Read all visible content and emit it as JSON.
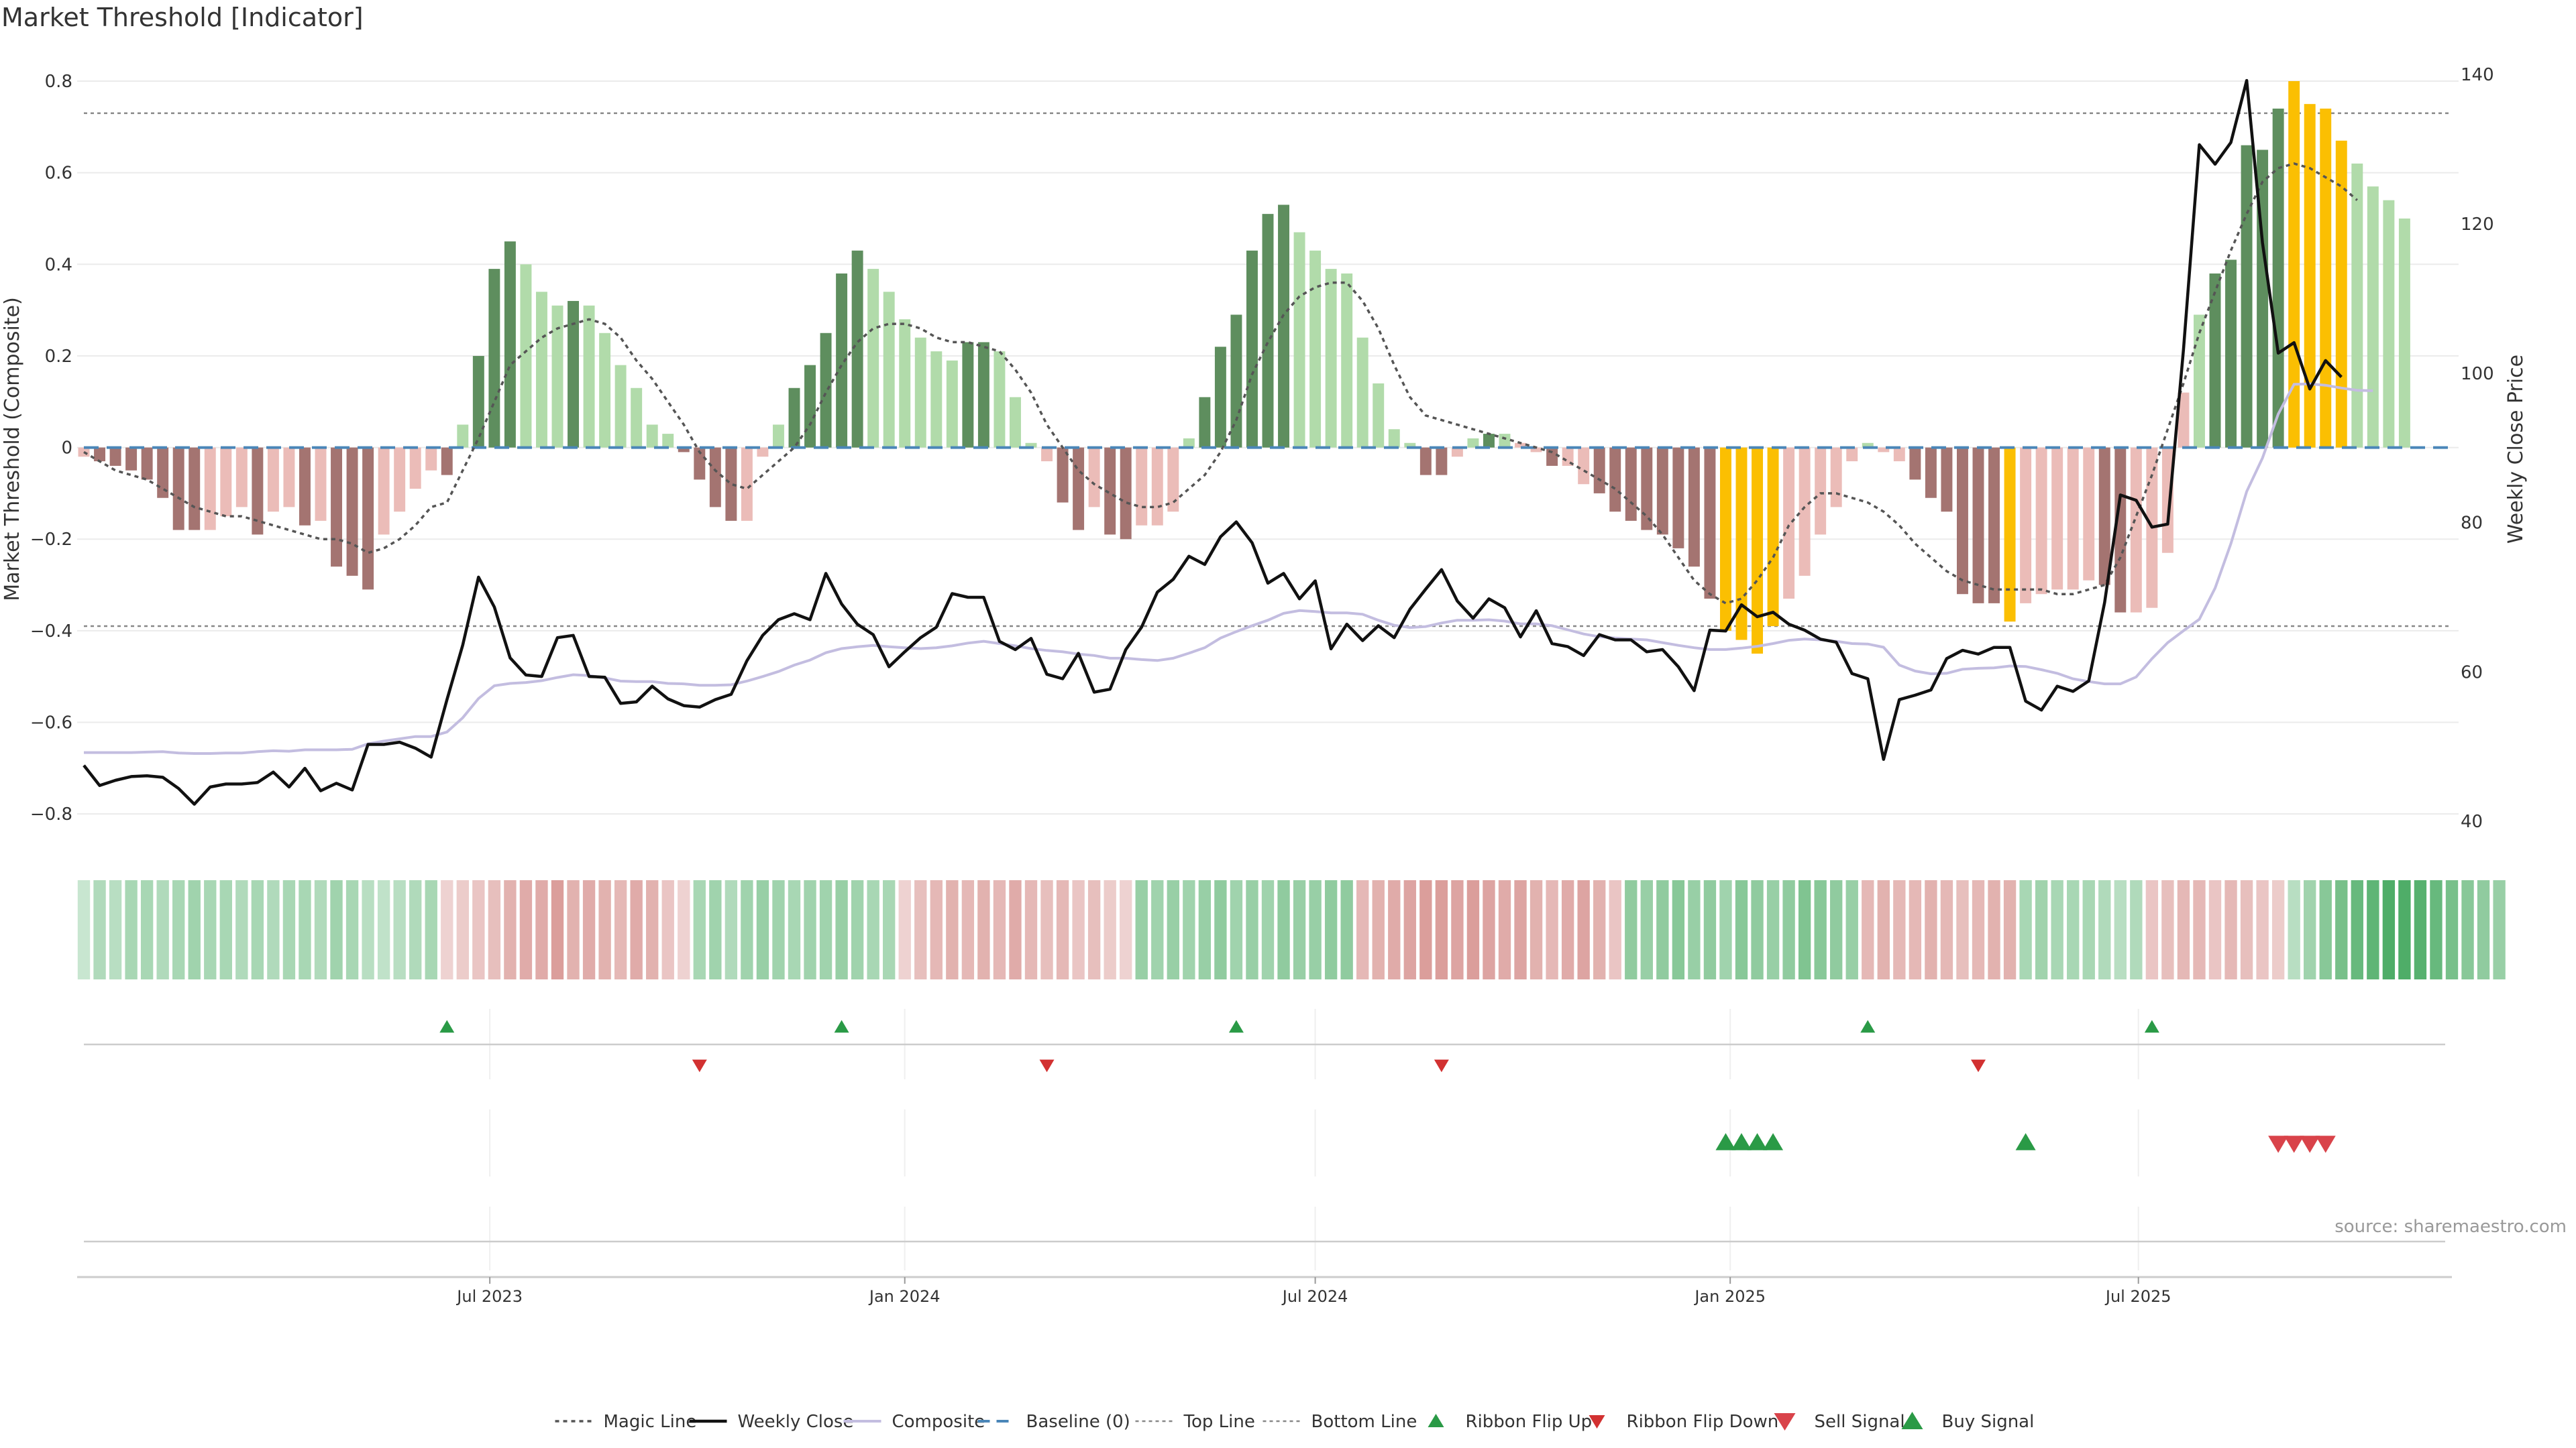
{
  "title": "Market Threshold [Indicator]",
  "source": "source: sharemaestro.com",
  "colors": {
    "bar_up_strong": "#5e8e5e",
    "bar_up_weak": "#b1dbaa",
    "bar_down_strong": "#a47471",
    "bar_down_weak": "#ebbcb8",
    "bar_extreme": "#fbbf02",
    "weekly_close": "#111111",
    "composite": "#c3bde0",
    "magic_line": "#555555",
    "baseline": "#4a86b8",
    "ribbon_flip_up": "#2a9a46",
    "ribbon_flip_down": "#d23131",
    "sell_signal": "#d9434a",
    "buy_signal": "#2a9a46"
  },
  "chart_data": {
    "type": "bar",
    "x_axis": {
      "type": "date",
      "range": [
        "2023-01-02",
        "2025-11-17"
      ],
      "ticks": [
        {
          "date": "2023-07-01",
          "label": "Jul 2023"
        },
        {
          "date": "2024-01-01",
          "label": "Jan 2024"
        },
        {
          "date": "2024-07-01",
          "label": "Jul 2024"
        },
        {
          "date": "2025-01-01",
          "label": "Jan 2025"
        },
        {
          "date": "2025-07-01",
          "label": "Jul 2025"
        }
      ]
    },
    "y_left": {
      "label": "Market Threshold (Composite)",
      "range": [
        -0.87,
        0.86
      ],
      "ticks": [
        -0.8,
        -0.6,
        -0.4,
        -0.2,
        0,
        0.2,
        0.4,
        0.6,
        0.8
      ],
      "tick_labels": [
        "−0.8",
        "−0.6",
        "−0.4",
        "−0.2",
        "0",
        "0.2",
        "0.4",
        "0.6",
        "0.8"
      ]
    },
    "y_right": {
      "label": "Weekly Close Price",
      "range": [
        36.7,
        142.8
      ],
      "ticks": [
        40,
        60,
        80,
        100,
        120,
        140
      ],
      "tick_labels": [
        "40",
        "60",
        "80",
        "100",
        "120",
        "140"
      ]
    },
    "top_line": 0.73,
    "bottom_line": -0.39,
    "histogram": [
      -0.02,
      -0.03,
      -0.04,
      -0.05,
      -0.07,
      -0.11,
      -0.18,
      -0.18,
      -0.18,
      -0.15,
      -0.13,
      -0.19,
      -0.14,
      -0.13,
      -0.17,
      -0.16,
      -0.26,
      -0.28,
      -0.31,
      -0.19,
      -0.14,
      -0.09,
      -0.05,
      -0.06,
      0.05,
      0.2,
      0.39,
      0.45,
      0.4,
      0.34,
      0.31,
      0.32,
      0.31,
      0.25,
      0.18,
      0.13,
      0.05,
      0.03,
      -0.01,
      -0.07,
      -0.13,
      -0.16,
      -0.16,
      -0.02,
      0.05,
      0.13,
      0.18,
      0.25,
      0.38,
      0.43,
      0.39,
      0.34,
      0.28,
      0.24,
      0.21,
      0.19,
      0.23,
      0.23,
      0.21,
      0.11,
      0.01,
      -0.03,
      -0.12,
      -0.18,
      -0.13,
      -0.19,
      -0.2,
      -0.17,
      -0.17,
      -0.14,
      0.02,
      0.11,
      0.22,
      0.29,
      0.43,
      0.51,
      0.53,
      0.47,
      0.43,
      0.39,
      0.38,
      0.24,
      0.14,
      0.04,
      0.01,
      -0.06,
      -0.06,
      -0.02,
      0.02,
      0.03,
      0.03,
      0.01,
      -0.01,
      -0.04,
      -0.04,
      -0.08,
      -0.1,
      -0.14,
      -0.16,
      -0.18,
      -0.19,
      -0.22,
      -0.26,
      -0.33,
      -0.4,
      -0.42,
      -0.45,
      -0.39,
      -0.33,
      -0.28,
      -0.19,
      -0.13,
      -0.03,
      0.01,
      -0.01,
      -0.03,
      -0.07,
      -0.11,
      -0.14,
      -0.32,
      -0.34,
      -0.34,
      -0.38,
      -0.34,
      -0.32,
      -0.31,
      -0.31,
      -0.29,
      -0.3,
      -0.36,
      -0.36,
      -0.35,
      -0.23,
      0.12,
      0.29,
      0.38,
      0.41,
      0.66,
      0.65,
      0.74,
      0.8,
      0.75,
      0.74,
      0.67,
      0.62,
      0.57,
      0.54,
      0.5
    ],
    "histogram_colors": [
      "dw",
      "ds",
      "ds",
      "ds",
      "ds",
      "ds",
      "ds",
      "ds",
      "dw",
      "dw",
      "dw",
      "ds",
      "dw",
      "dw",
      "ds",
      "dw",
      "ds",
      "ds",
      "ds",
      "dw",
      "dw",
      "dw",
      "dw",
      "ds",
      "uw",
      "us",
      "us",
      "us",
      "uw",
      "uw",
      "uw",
      "us",
      "uw",
      "uw",
      "uw",
      "uw",
      "uw",
      "uw",
      "ds",
      "ds",
      "ds",
      "ds",
      "dw",
      "dw",
      "uw",
      "us",
      "us",
      "us",
      "us",
      "us",
      "uw",
      "uw",
      "uw",
      "uw",
      "uw",
      "uw",
      "us",
      "us",
      "uw",
      "uw",
      "uw",
      "dw",
      "ds",
      "ds",
      "dw",
      "ds",
      "ds",
      "dw",
      "dw",
      "dw",
      "uw",
      "us",
      "us",
      "us",
      "us",
      "us",
      "us",
      "uw",
      "uw",
      "uw",
      "uw",
      "uw",
      "uw",
      "uw",
      "uw",
      "ds",
      "ds",
      "dw",
      "uw",
      "us",
      "uw",
      "dw",
      "dw",
      "ds",
      "dw",
      "dw",
      "ds",
      "ds",
      "ds",
      "ds",
      "ds",
      "ds",
      "ds",
      "ds",
      "ex",
      "ex",
      "ex",
      "ex",
      "dw",
      "dw",
      "dw",
      "dw",
      "dw",
      "uw",
      "dw",
      "dw",
      "ds",
      "ds",
      "ds",
      "ds",
      "ds",
      "ds",
      "ex",
      "dw",
      "dw",
      "dw",
      "dw",
      "dw",
      "ds",
      "ds",
      "dw",
      "dw",
      "dw",
      "dw",
      "uw",
      "us",
      "us",
      "us",
      "us",
      "us",
      "ex",
      "ex",
      "ex",
      "ex",
      "uw",
      "uw",
      "uw",
      "uw",
      "uw"
    ],
    "weekly_close": [
      47.5,
      44.8,
      45.5,
      46.0,
      46.1,
      45.9,
      44.4,
      42.3,
      44.6,
      45.0,
      45.0,
      45.2,
      46.6,
      44.6,
      47.1,
      44.1,
      45.1,
      44.2,
      50.3,
      50.3,
      50.6,
      49.8,
      48.6,
      56.3,
      63.6,
      72.7,
      68.7,
      61.9,
      59.6,
      59.4,
      64.6,
      64.9,
      59.4,
      59.3,
      55.8,
      56.0,
      58.1,
      56.4,
      55.5,
      55.3,
      56.3,
      57.0,
      61.5,
      64.9,
      67.0,
      67.8,
      67.0,
      73.2,
      69.1,
      66.4,
      65.0,
      60.7,
      62.7,
      64.6,
      66.0,
      70.5,
      70.0,
      70.0,
      64.1,
      63.0,
      64.5,
      59.7,
      59.1,
      62.5,
      57.3,
      57.7,
      63.0,
      66.0,
      70.7,
      72.4,
      75.5,
      74.4,
      78.1,
      80.1,
      77.3,
      71.9,
      73.2,
      69.8,
      72.2,
      63.1,
      66.4,
      64.2,
      66.2,
      64.6,
      68.4,
      71.1,
      73.7,
      69.5,
      67.2,
      69.8,
      68.6,
      64.7,
      68.2,
      63.8,
      63.4,
      62.2,
      65.0,
      64.3,
      64.3,
      62.7,
      63.0,
      60.7,
      57.5,
      65.6,
      65.5,
      69.0,
      67.4,
      68.0,
      66.4,
      65.6,
      64.4,
      64.0,
      59.8,
      59.1,
      48.3,
      56.3,
      56.9,
      57.6,
      61.8,
      62.9,
      62.4,
      63.3,
      63.3,
      56.1,
      54.9,
      58.1,
      57.4,
      58.8,
      69.3,
      83.7,
      83.0,
      79.4,
      79.8,
      103.2,
      130.6,
      128.0,
      130.9,
      139.2,
      117.5,
      102.7,
      104.1,
      97.9,
      101.7,
      99.5
    ],
    "composite": [
      -0.666,
      -0.666,
      -0.666,
      -0.666,
      -0.665,
      -0.664,
      -0.667,
      -0.668,
      -0.668,
      -0.667,
      -0.667,
      -0.664,
      -0.662,
      -0.663,
      -0.66,
      -0.66,
      -0.66,
      -0.659,
      -0.647,
      -0.641,
      -0.636,
      -0.631,
      -0.631,
      -0.621,
      -0.59,
      -0.548,
      -0.52,
      -0.515,
      -0.513,
      -0.509,
      -0.502,
      -0.496,
      -0.498,
      -0.503,
      -0.51,
      -0.511,
      -0.511,
      -0.515,
      -0.516,
      -0.519,
      -0.519,
      -0.518,
      -0.51,
      -0.5,
      -0.489,
      -0.475,
      -0.464,
      -0.448,
      -0.439,
      -0.435,
      -0.432,
      -0.435,
      -0.437,
      -0.439,
      -0.437,
      -0.433,
      -0.427,
      -0.423,
      -0.428,
      -0.433,
      -0.439,
      -0.443,
      -0.446,
      -0.451,
      -0.454,
      -0.46,
      -0.46,
      -0.463,
      -0.465,
      -0.46,
      -0.449,
      -0.437,
      -0.416,
      -0.402,
      -0.389,
      -0.377,
      -0.362,
      -0.356,
      -0.358,
      -0.361,
      -0.361,
      -0.364,
      -0.377,
      -0.388,
      -0.393,
      -0.391,
      -0.383,
      -0.377,
      -0.377,
      -0.376,
      -0.379,
      -0.385,
      -0.385,
      -0.389,
      -0.398,
      -0.407,
      -0.413,
      -0.416,
      -0.418,
      -0.42,
      -0.426,
      -0.432,
      -0.437,
      -0.441,
      -0.441,
      -0.438,
      -0.434,
      -0.428,
      -0.421,
      -0.418,
      -0.42,
      -0.423,
      -0.428,
      -0.429,
      -0.436,
      -0.475,
      -0.488,
      -0.494,
      -0.493,
      -0.484,
      -0.482,
      -0.481,
      -0.477,
      -0.478,
      -0.485,
      -0.493,
      -0.505,
      -0.511,
      -0.516,
      -0.516,
      -0.501,
      -0.461,
      -0.426,
      -0.4,
      -0.375,
      -0.307,
      -0.21,
      -0.096,
      -0.023,
      0.073,
      0.138,
      0.139,
      0.136,
      0.13,
      0.125,
      0.124
    ],
    "magic_line": [
      -0.01,
      -0.03,
      -0.05,
      -0.06,
      -0.07,
      -0.09,
      -0.11,
      -0.13,
      -0.14,
      -0.15,
      -0.15,
      -0.16,
      -0.17,
      -0.18,
      -0.19,
      -0.2,
      -0.2,
      -0.21,
      -0.23,
      -0.22,
      -0.2,
      -0.17,
      -0.13,
      -0.12,
      -0.05,
      0.02,
      0.1,
      0.18,
      0.21,
      0.24,
      0.26,
      0.27,
      0.28,
      0.27,
      0.24,
      0.19,
      0.15,
      0.1,
      0.05,
      -0.01,
      -0.05,
      -0.08,
      -0.09,
      -0.06,
      -0.03,
      0.0,
      0.05,
      0.12,
      0.18,
      0.23,
      0.26,
      0.27,
      0.27,
      0.26,
      0.24,
      0.23,
      0.23,
      0.22,
      0.21,
      0.17,
      0.12,
      0.05,
      0.0,
      -0.05,
      -0.08,
      -0.1,
      -0.12,
      -0.13,
      -0.13,
      -0.12,
      -0.09,
      -0.06,
      -0.01,
      0.06,
      0.16,
      0.23,
      0.29,
      0.33,
      0.35,
      0.36,
      0.36,
      0.32,
      0.26,
      0.18,
      0.11,
      0.07,
      0.06,
      0.05,
      0.04,
      0.03,
      0.02,
      0.01,
      0.0,
      -0.01,
      -0.03,
      -0.05,
      -0.07,
      -0.09,
      -0.12,
      -0.15,
      -0.19,
      -0.24,
      -0.29,
      -0.32,
      -0.34,
      -0.33,
      -0.29,
      -0.24,
      -0.17,
      -0.13,
      -0.1,
      -0.1,
      -0.11,
      -0.12,
      -0.14,
      -0.17,
      -0.21,
      -0.24,
      -0.27,
      -0.29,
      -0.3,
      -0.31,
      -0.31,
      -0.31,
      -0.31,
      -0.32,
      -0.32,
      -0.31,
      -0.3,
      -0.24,
      -0.15,
      -0.06,
      0.04,
      0.14,
      0.25,
      0.34,
      0.43,
      0.51,
      0.58,
      0.61,
      0.62,
      0.61,
      0.59,
      0.57,
      0.54
    ],
    "ribbon": [
      0.1,
      0.25,
      0.2,
      0.3,
      0.3,
      0.25,
      0.3,
      0.35,
      0.3,
      0.3,
      0.25,
      0.3,
      0.25,
      0.3,
      0.3,
      0.25,
      0.35,
      0.3,
      0.2,
      0.15,
      0.2,
      0.25,
      0.3,
      -0.1,
      -0.15,
      -0.2,
      -0.25,
      -0.35,
      -0.4,
      -0.4,
      -0.5,
      -0.35,
      -0.4,
      -0.35,
      -0.3,
      -0.4,
      -0.35,
      -0.2,
      -0.1,
      0.3,
      0.35,
      0.25,
      0.35,
      0.4,
      0.35,
      0.3,
      0.35,
      0.35,
      0.4,
      0.35,
      0.3,
      0.3,
      -0.1,
      -0.25,
      -0.3,
      -0.35,
      -0.3,
      -0.35,
      -0.3,
      -0.4,
      -0.3,
      -0.25,
      -0.3,
      -0.2,
      -0.25,
      -0.15,
      -0.1,
      0.4,
      0.35,
      0.4,
      0.35,
      0.4,
      0.45,
      0.35,
      0.4,
      0.35,
      0.45,
      0.4,
      0.4,
      0.45,
      0.45,
      -0.3,
      -0.35,
      -0.4,
      -0.45,
      -0.5,
      -0.5,
      -0.45,
      -0.5,
      -0.45,
      -0.4,
      -0.45,
      -0.35,
      -0.3,
      -0.4,
      -0.45,
      -0.35,
      -0.2,
      0.45,
      0.4,
      0.45,
      0.5,
      0.4,
      0.45,
      0.35,
      0.5,
      0.45,
      0.4,
      0.45,
      0.55,
      0.5,
      0.45,
      0.4,
      -0.3,
      -0.35,
      -0.3,
      -0.3,
      -0.35,
      -0.3,
      -0.25,
      -0.3,
      -0.35,
      -0.35,
      0.3,
      0.35,
      0.3,
      0.3,
      0.3,
      0.25,
      0.2,
      0.25,
      -0.2,
      -0.25,
      -0.3,
      -0.3,
      -0.2,
      -0.3,
      -0.25,
      -0.2,
      -0.15,
      0.2,
      0.35,
      0.5,
      0.6,
      0.7,
      0.75,
      0.85,
      0.85,
      0.8,
      0.7,
      0.6,
      0.5,
      0.45,
      0.4
    ],
    "ribbon_flip_up": [
      "2023-06-12",
      "2023-12-04",
      "2024-05-27",
      "2025-03-03",
      "2025-07-07"
    ],
    "ribbon_flip_down": [
      "2023-10-02",
      "2024-03-04",
      "2024-08-26",
      "2025-04-21"
    ],
    "buy_signal": [
      "2024-12-30",
      "2025-01-06",
      "2025-01-13",
      "2025-01-20",
      "2025-05-12"
    ],
    "sell_signal": [
      "2025-09-01",
      "2025-09-08",
      "2025-09-15",
      "2025-09-22"
    ],
    "legend": {
      "placement": "bottom-center",
      "entries": [
        {
          "key": "magic",
          "label": "Magic Line"
        },
        {
          "key": "close",
          "label": "Weekly Close"
        },
        {
          "key": "composite",
          "label": "Composite"
        },
        {
          "key": "baseline",
          "label": "Baseline (0)"
        },
        {
          "key": "top",
          "label": "Top Line"
        },
        {
          "key": "bottom",
          "label": "Bottom Line"
        },
        {
          "key": "flip_up",
          "label": "Ribbon Flip Up"
        },
        {
          "key": "flip_down",
          "label": "Ribbon Flip Down"
        },
        {
          "key": "sell",
          "label": "Sell Signal"
        },
        {
          "key": "buy",
          "label": "Buy Signal"
        }
      ]
    }
  }
}
